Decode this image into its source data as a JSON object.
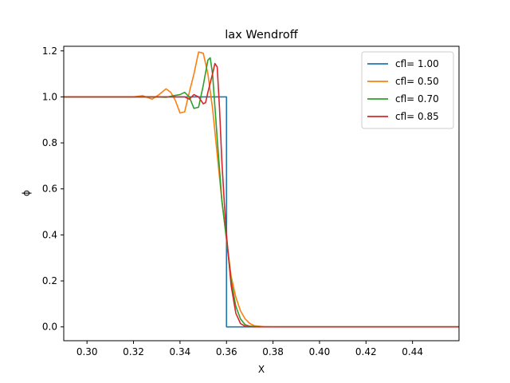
{
  "chart_data": {
    "type": "line",
    "title": "lax Wendroff",
    "xlabel": "X",
    "ylabel": "ϕ",
    "xlim": [
      0.29,
      0.46
    ],
    "ylim": [
      -0.06,
      1.22
    ],
    "xticks": [
      0.3,
      0.32,
      0.34,
      0.36,
      0.38,
      0.4,
      0.42,
      0.44
    ],
    "xtick_labels": [
      "0.30",
      "0.32",
      "0.34",
      "0.36",
      "0.38",
      "0.40",
      "0.42",
      "0.44"
    ],
    "yticks": [
      0.0,
      0.2,
      0.4,
      0.6,
      0.8,
      1.0,
      1.2
    ],
    "ytick_labels": [
      "0.0",
      "0.2",
      "0.4",
      "0.6",
      "0.8",
      "1.0",
      "1.2"
    ],
    "grid": false,
    "legend_position": "top-right",
    "series": [
      {
        "name": "cfl= 1.00",
        "color": "#1f77b4",
        "x": [
          0.29,
          0.36,
          0.36,
          0.46
        ],
        "y": [
          1.0,
          1.0,
          0.0,
          0.0
        ]
      },
      {
        "name": "cfl= 0.50",
        "color": "#ff7f0e",
        "x": [
          0.29,
          0.315,
          0.32,
          0.324,
          0.328,
          0.331,
          0.334,
          0.336,
          0.338,
          0.34,
          0.342,
          0.344,
          0.346,
          0.348,
          0.35,
          0.352,
          0.354,
          0.356,
          0.358,
          0.36,
          0.362,
          0.364,
          0.366,
          0.368,
          0.37,
          0.372,
          0.376,
          0.38,
          0.46
        ],
        "y": [
          1.0,
          1.0,
          1.0,
          1.005,
          0.99,
          1.01,
          1.035,
          1.02,
          0.985,
          0.93,
          0.935,
          1.02,
          1.1,
          1.195,
          1.19,
          1.1,
          0.95,
          0.75,
          0.55,
          0.38,
          0.22,
          0.13,
          0.07,
          0.035,
          0.015,
          0.005,
          0.001,
          0.0,
          0.0
        ]
      },
      {
        "name": "cfl= 0.70",
        "color": "#2ca02c",
        "x": [
          0.29,
          0.33,
          0.334,
          0.337,
          0.34,
          0.342,
          0.344,
          0.346,
          0.348,
          0.35,
          0.352,
          0.353,
          0.354,
          0.356,
          0.358,
          0.36,
          0.362,
          0.364,
          0.366,
          0.368,
          0.37,
          0.375,
          0.46
        ],
        "y": [
          1.0,
          1.0,
          0.998,
          1.005,
          1.01,
          1.02,
          1.0,
          0.95,
          0.955,
          1.05,
          1.16,
          1.17,
          1.1,
          0.82,
          0.55,
          0.38,
          0.2,
          0.09,
          0.035,
          0.01,
          0.003,
          0.0,
          0.0
        ]
      },
      {
        "name": "cfl= 0.85",
        "color": "#d62728",
        "x": [
          0.29,
          0.338,
          0.342,
          0.344,
          0.346,
          0.348,
          0.35,
          0.351,
          0.352,
          0.354,
          0.355,
          0.356,
          0.357,
          0.358,
          0.359,
          0.36,
          0.362,
          0.364,
          0.366,
          0.368,
          0.372,
          0.46
        ],
        "y": [
          1.0,
          1.0,
          1.0,
          0.99,
          1.01,
          1.0,
          0.97,
          0.975,
          1.02,
          1.1,
          1.145,
          1.13,
          0.95,
          0.72,
          0.55,
          0.4,
          0.18,
          0.06,
          0.015,
          0.003,
          0.0,
          0.0
        ]
      }
    ]
  }
}
